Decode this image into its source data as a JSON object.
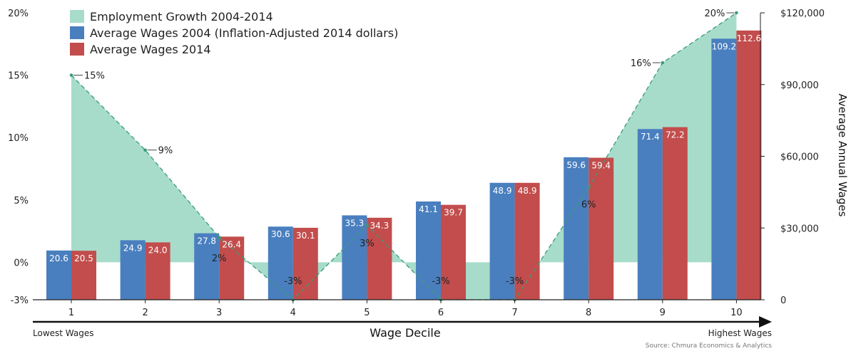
{
  "chart_data": {
    "type": "bar",
    "title": "",
    "xlabel": "Wage Decile",
    "ylabel_right": "Average Annual Wages",
    "x_left_note": "Lowest Wages",
    "x_right_note": "Highest Wages",
    "source": "Source: Chmura Economics & Analytics",
    "categories": [
      "1",
      "2",
      "3",
      "4",
      "5",
      "6",
      "7",
      "8",
      "9",
      "10"
    ],
    "series": [
      {
        "name": "Employment Growth 2004-2014",
        "type": "area",
        "axis": "left",
        "color": "#a7dccb",
        "line_color": "#3a9b7a",
        "values": [
          15,
          9,
          2,
          -3,
          3,
          -3,
          -3,
          6,
          16,
          20
        ],
        "labels": [
          "15%",
          "9%",
          "2%",
          "-3%",
          "3%",
          "-3%",
          "-3%",
          "6%",
          "16%",
          "20%"
        ]
      },
      {
        "name": "Average Wages 2004 (Inflation-Adjusted 2014 dollars)",
        "type": "bar",
        "axis": "right",
        "color": "#4a7fbf",
        "values": [
          20.6,
          24.9,
          27.8,
          30.6,
          35.3,
          41.1,
          48.9,
          59.6,
          71.4,
          109.2
        ],
        "labels": [
          "20.6",
          "24.9",
          "27.8",
          "30.6",
          "35.3",
          "41.1",
          "48.9",
          "59.6",
          "71.4",
          "109.2"
        ]
      },
      {
        "name": "Average Wages 2014",
        "type": "bar",
        "axis": "right",
        "color": "#c24d4c",
        "values": [
          20.5,
          24.0,
          26.4,
          30.1,
          34.3,
          39.7,
          48.9,
          59.4,
          72.2,
          112.6
        ],
        "labels": [
          "20.5",
          "24.0",
          "26.4",
          "30.1",
          "34.3",
          "39.7",
          "48.9",
          "59.4",
          "72.2",
          "112.6"
        ]
      }
    ],
    "y_left": {
      "range": [
        -3,
        20
      ],
      "ticks": [
        20,
        15,
        10,
        5,
        0,
        -3
      ],
      "tick_labels": [
        "20%",
        "15%",
        "10%",
        "5%",
        "0%",
        "-3%"
      ]
    },
    "y_right": {
      "range": [
        0,
        120000
      ],
      "ticks": [
        120000,
        90000,
        60000,
        30000,
        0
      ],
      "tick_labels": [
        "$120,000",
        "$90,000",
        "$60,000",
        "$30,000",
        "0"
      ]
    },
    "grid": false,
    "legend_position": "top-left"
  }
}
